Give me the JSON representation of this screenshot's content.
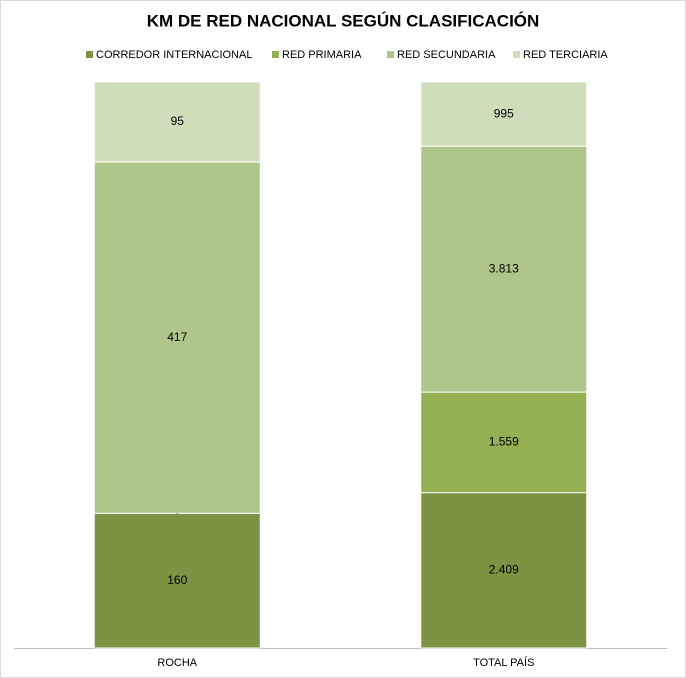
{
  "chart_data": {
    "type": "stacked-bar-100",
    "title": "KM DE RED NACIONAL SEGÚN CLASIFICACIÓN",
    "categories": [
      "ROCHA",
      "TOTAL PAÍS"
    ],
    "series": [
      {
        "name": "CORREDOR INTERNACIONAL",
        "color": "#7a9444",
        "values": [
          160,
          2409
        ],
        "value_labels": [
          "160",
          "2.409"
        ]
      },
      {
        "name": "RED PRIMARIA",
        "color": "#93b052",
        "values": [
          0,
          1559
        ],
        "value_labels": [
          "-",
          "1.559"
        ]
      },
      {
        "name": "RED SECUNDARIA",
        "color": "#aec689",
        "values": [
          417,
          3813
        ],
        "value_labels": [
          "417",
          "3.813"
        ]
      },
      {
        "name": "RED TERCIARIA",
        "color": "#d0ddbb",
        "values": [
          95,
          995
        ],
        "value_labels": [
          "95",
          "995"
        ]
      }
    ],
    "legend": "top"
  }
}
